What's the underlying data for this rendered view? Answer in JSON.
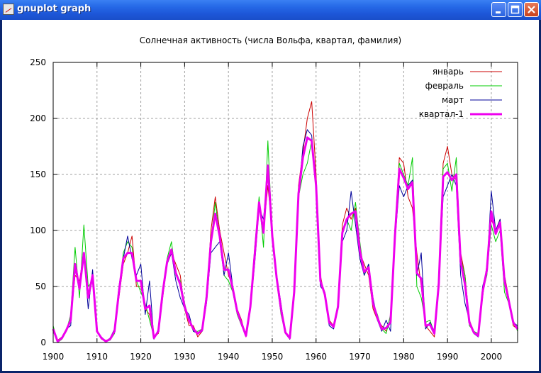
{
  "window": {
    "title": "gnuplot graph"
  },
  "colors": {
    "jan": "#cc0000",
    "feb": "#00cc00",
    "mar": "#000099",
    "q1": "#ee00ee",
    "grid": "#a0a0a0"
  },
  "chart_data": {
    "type": "line",
    "title": "Солнечная активность (числа Вольфа, квартал, фамилия)",
    "xlabel": "",
    "ylabel": "",
    "xlim": [
      1900,
      2006
    ],
    "ylim": [
      0,
      250
    ],
    "xticks": [
      "1900",
      "1910",
      "1920",
      "1930",
      "1940",
      "1950",
      "1960",
      "1970",
      "1980",
      "1990",
      "2000"
    ],
    "yticks": [
      "0",
      "50",
      "100",
      "150",
      "200",
      "250"
    ],
    "grid": true,
    "legend": "top-right",
    "x": [
      1900,
      1901,
      1902,
      1903,
      1904,
      1905,
      1906,
      1907,
      1908,
      1909,
      1910,
      1911,
      1912,
      1913,
      1914,
      1915,
      1916,
      1917,
      1918,
      1919,
      1920,
      1921,
      1922,
      1923,
      1924,
      1925,
      1926,
      1927,
      1928,
      1929,
      1930,
      1931,
      1932,
      1933,
      1934,
      1935,
      1936,
      1937,
      1938,
      1939,
      1940,
      1941,
      1942,
      1943,
      1944,
      1945,
      1946,
      1947,
      1948,
      1949,
      1950,
      1951,
      1952,
      1953,
      1954,
      1955,
      1956,
      1957,
      1958,
      1959,
      1960,
      1961,
      1962,
      1963,
      1964,
      1965,
      1966,
      1967,
      1968,
      1969,
      1970,
      1971,
      1972,
      1973,
      1974,
      1975,
      1976,
      1977,
      1978,
      1979,
      1980,
      1981,
      1982,
      1983,
      1984,
      1985,
      1986,
      1987,
      1988,
      1989,
      1990,
      1991,
      1992,
      1993,
      1994,
      1995,
      1996,
      1997,
      1998,
      1999,
      2000,
      2001,
      2002,
      2003,
      2004,
      2005,
      2006
    ],
    "series": [
      {
        "name": "январь",
        "values": [
          12,
          2,
          5,
          12,
          20,
          60,
          55,
          80,
          40,
          60,
          10,
          3,
          2,
          3,
          10,
          40,
          70,
          80,
          95,
          50,
          50,
          30,
          25,
          5,
          8,
          40,
          70,
          80,
          70,
          60,
          30,
          15,
          15,
          5,
          10,
          40,
          100,
          130,
          100,
          80,
          60,
          50,
          30,
          20,
          5,
          30,
          80,
          125,
          100,
          140,
          100,
          60,
          30,
          10,
          3,
          40,
          140,
          170,
          200,
          215,
          150,
          60,
          40,
          20,
          15,
          30,
          105,
          120,
          110,
          120,
          80,
          70,
          60,
          30,
          20,
          15,
          10,
          20,
          100,
          165,
          160,
          130,
          120,
          80,
          50,
          15,
          10,
          5,
          60,
          160,
          175,
          150,
          145,
          80,
          60,
          20,
          10,
          5,
          40,
          70,
          110,
          100,
          110,
          60,
          40,
          15,
          12
        ]
      },
      {
        "name": "февраль",
        "values": [
          15,
          0,
          3,
          10,
          25,
          85,
          40,
          105,
          50,
          55,
          10,
          5,
          1,
          2,
          8,
          45,
          80,
          90,
          85,
          55,
          45,
          35,
          20,
          5,
          10,
          45,
          75,
          90,
          60,
          55,
          35,
          20,
          10,
          10,
          12,
          45,
          90,
          125,
          95,
          60,
          55,
          45,
          25,
          15,
          8,
          35,
          85,
          130,
          85,
          180,
          95,
          55,
          25,
          8,
          5,
          50,
          130,
          150,
          160,
          180,
          140,
          55,
          45,
          18,
          15,
          35,
          100,
          110,
          100,
          125,
          90,
          60,
          70,
          35,
          25,
          12,
          8,
          25,
          95,
          160,
          150,
          140,
          165,
          50,
          40,
          18,
          20,
          8,
          55,
          155,
          160,
          135,
          165,
          75,
          60,
          15,
          10,
          8,
          45,
          60,
          105,
          90,
          100,
          45,
          35,
          20,
          10
        ]
      },
      {
        "name": "март",
        "values": [
          10,
          1,
          5,
          12,
          15,
          65,
          50,
          80,
          30,
          65,
          10,
          5,
          1,
          4,
          12,
          50,
          75,
          95,
          75,
          60,
          70,
          25,
          55,
          3,
          12,
          45,
          70,
          80,
          55,
          40,
          30,
          25,
          10,
          8,
          10,
          35,
          80,
          85,
          90,
          60,
          80,
          50,
          30,
          15,
          6,
          30,
          70,
          120,
          110,
          155,
          90,
          60,
          35,
          8,
          3,
          45,
          130,
          175,
          190,
          185,
          135,
          50,
          45,
          15,
          12,
          30,
          90,
          100,
          135,
          105,
          75,
          60,
          70,
          40,
          20,
          10,
          20,
          10,
          90,
          140,
          130,
          140,
          145,
          60,
          80,
          12,
          18,
          10,
          50,
          130,
          140,
          150,
          140,
          60,
          35,
          20,
          8,
          5,
          50,
          65,
          135,
          100,
          110,
          60,
          35,
          18,
          15
        ]
      },
      {
        "name": "квартал-1",
        "values": [
          12,
          1,
          4,
          11,
          20,
          70,
          48,
          80,
          40,
          60,
          10,
          4,
          1,
          3,
          10,
          45,
          75,
          80,
          80,
          55,
          55,
          30,
          33,
          4,
          10,
          45,
          72,
          83,
          62,
          52,
          32,
          20,
          12,
          8,
          11,
          40,
          90,
          115,
          95,
          65,
          65,
          48,
          28,
          17,
          6,
          32,
          78,
          125,
          98,
          158,
          95,
          58,
          30,
          9,
          4,
          45,
          133,
          165,
          183,
          180,
          140,
          55,
          43,
          18,
          14,
          32,
          98,
          110,
          115,
          117,
          82,
          63,
          67,
          35,
          22,
          12,
          13,
          18,
          95,
          155,
          147,
          137,
          143,
          62,
          57,
          15,
          16,
          8,
          52,
          148,
          152,
          145,
          150,
          72,
          52,
          18,
          9,
          6,
          45,
          65,
          117,
          97,
          107,
          55,
          37,
          18,
          12
        ]
      }
    ]
  }
}
